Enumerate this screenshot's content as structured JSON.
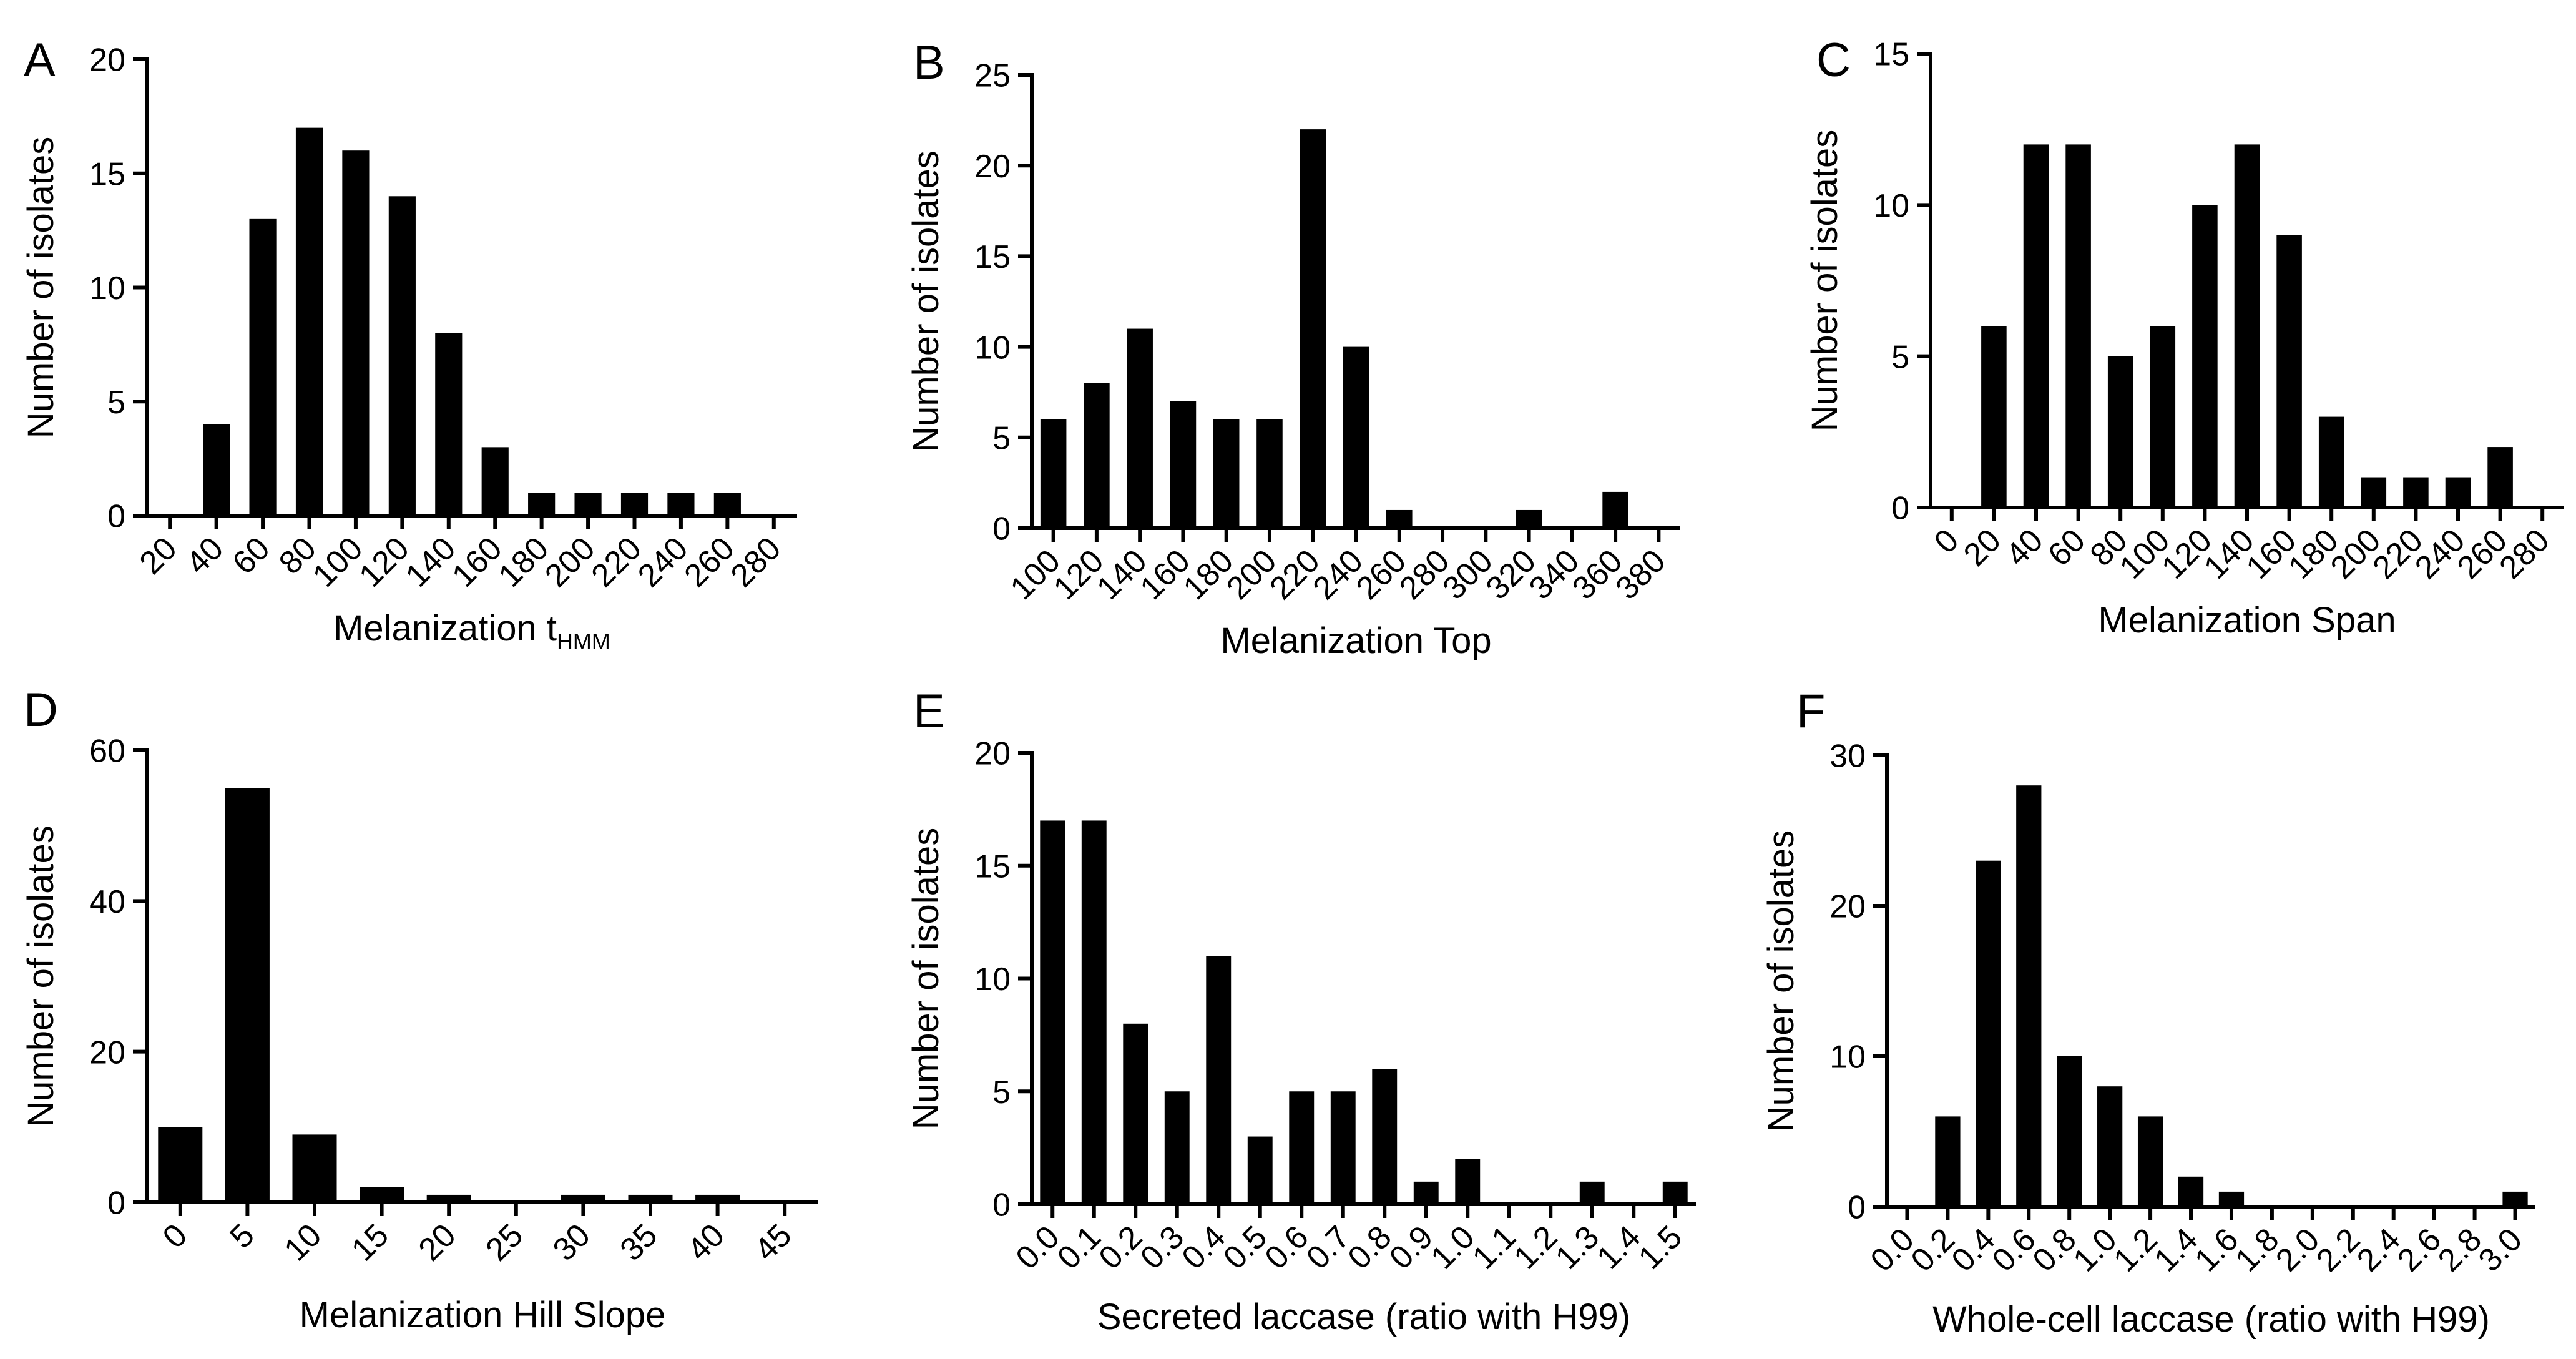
{
  "chart_data": [
    {
      "panel": "A",
      "type": "bar",
      "categories": [
        "20",
        "40",
        "60",
        "80",
        "100",
        "120",
        "140",
        "160",
        "180",
        "200",
        "220",
        "240",
        "260",
        "280"
      ],
      "values": [
        0,
        4,
        13,
        17,
        16,
        14,
        8,
        3,
        1,
        1,
        1,
        1,
        1,
        0
      ],
      "xlabel": "Melanization t",
      "xlabel_sub": "HMM",
      "ylabel": "Number of isolates",
      "ylim": [
        0,
        20
      ],
      "yticks": [
        0,
        5,
        10,
        15,
        20
      ]
    },
    {
      "panel": "B",
      "type": "bar",
      "categories": [
        "100",
        "120",
        "140",
        "160",
        "180",
        "200",
        "220",
        "240",
        "260",
        "280",
        "300",
        "320",
        "340",
        "360",
        "380"
      ],
      "values": [
        6,
        8,
        11,
        7,
        6,
        6,
        22,
        10,
        1,
        0,
        0,
        1,
        0,
        2,
        0
      ],
      "xlabel": "Melanization Top",
      "ylabel": "Number of isolates",
      "ylim": [
        0,
        25
      ],
      "yticks": [
        0,
        5,
        10,
        15,
        20,
        25
      ]
    },
    {
      "panel": "C",
      "type": "bar",
      "categories": [
        "0",
        "20",
        "40",
        "60",
        "80",
        "100",
        "120",
        "140",
        "160",
        "180",
        "200",
        "220",
        "240",
        "260",
        "280"
      ],
      "values": [
        0,
        6,
        12,
        12,
        5,
        6,
        10,
        12,
        9,
        3,
        1,
        1,
        1,
        2,
        0
      ],
      "xlabel": "Melanization Span",
      "ylabel": "Number of isolates",
      "ylim": [
        0,
        15
      ],
      "yticks": [
        0,
        5,
        10,
        15
      ]
    },
    {
      "panel": "D",
      "type": "bar",
      "categories": [
        "0",
        "5",
        "10",
        "15",
        "20",
        "25",
        "30",
        "35",
        "40",
        "45"
      ],
      "values": [
        10,
        55,
        9,
        2,
        1,
        0,
        1,
        1,
        1,
        0
      ],
      "xlabel": "Melanization Hill Slope",
      "ylabel": "Number of isolates",
      "ylim": [
        0,
        60
      ],
      "yticks": [
        0,
        20,
        40,
        60
      ]
    },
    {
      "panel": "E",
      "type": "bar",
      "categories": [
        "0.0",
        "0.1",
        "0.2",
        "0.3",
        "0.4",
        "0.5",
        "0.6",
        "0.7",
        "0.8",
        "0.9",
        "1.0",
        "1.1",
        "1.2",
        "1.3",
        "1.4",
        "1.5"
      ],
      "values": [
        17,
        17,
        8,
        5,
        11,
        3,
        5,
        5,
        6,
        1,
        2,
        0,
        0,
        1,
        0,
        1
      ],
      "xlabel": "Secreted laccase (ratio with H99)",
      "ylabel": "Number of isolates",
      "ylim": [
        0,
        20
      ],
      "yticks": [
        0,
        5,
        10,
        15,
        20
      ]
    },
    {
      "panel": "F",
      "type": "bar",
      "categories": [
        "0.0",
        "0.2",
        "0.4",
        "0.6",
        "0.8",
        "1.0",
        "1.2",
        "1.4",
        "1.6",
        "1.8",
        "2.0",
        "2.2",
        "2.4",
        "2.6",
        "2.8",
        "3.0"
      ],
      "values": [
        0,
        6,
        23,
        28,
        10,
        8,
        6,
        2,
        1,
        0,
        0,
        0,
        0,
        0,
        0,
        1
      ],
      "xlabel": "Whole-cell laccase (ratio with H99)",
      "ylabel": "Number of isolates",
      "ylim": [
        0,
        30
      ],
      "yticks": [
        0,
        10,
        20,
        30
      ]
    }
  ]
}
